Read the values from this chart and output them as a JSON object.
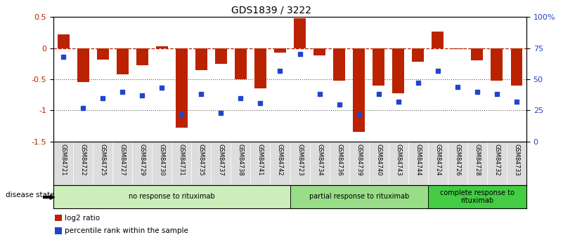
{
  "title": "GDS1839 / 3222",
  "samples": [
    "GSM84721",
    "GSM84722",
    "GSM84725",
    "GSM84727",
    "GSM84729",
    "GSM84730",
    "GSM84731",
    "GSM84735",
    "GSM84737",
    "GSM84738",
    "GSM84741",
    "GSM84742",
    "GSM84723",
    "GSM84734",
    "GSM84736",
    "GSM84739",
    "GSM84740",
    "GSM84743",
    "GSM84744",
    "GSM84724",
    "GSM84726",
    "GSM84728",
    "GSM84732",
    "GSM84733"
  ],
  "log2_ratio": [
    0.22,
    -0.55,
    -0.18,
    -0.42,
    -0.28,
    0.03,
    -1.28,
    -0.35,
    -0.25,
    -0.5,
    -0.65,
    -0.07,
    0.48,
    -0.12,
    -0.52,
    -1.35,
    -0.6,
    -0.72,
    -0.22,
    0.27,
    -0.02,
    -0.2,
    -0.52,
    -0.6
  ],
  "percentile": [
    68,
    27,
    35,
    40,
    37,
    43,
    22,
    38,
    23,
    35,
    31,
    57,
    70,
    38,
    30,
    22,
    38,
    32,
    47,
    57,
    44,
    40,
    38,
    32
  ],
  "groups": [
    {
      "label": "no response to rituximab",
      "start": 0,
      "end": 12,
      "color": "#cceebb"
    },
    {
      "label": "partial response to rituximab",
      "start": 12,
      "end": 19,
      "color": "#99dd88"
    },
    {
      "label": "complete response to\nrituximab",
      "start": 19,
      "end": 24,
      "color": "#44cc44"
    }
  ],
  "ylim_left": [
    -1.5,
    0.5
  ],
  "ylim_right": [
    0,
    100
  ],
  "bar_color": "#bb2200",
  "dot_color": "#2244cc",
  "background_color": "#ffffff",
  "hline_color": "#bb2200",
  "dotted_line_color": "#555555",
  "right_ticks": [
    0,
    25,
    50,
    75,
    100
  ],
  "right_tick_labels": [
    "0",
    "25",
    "50",
    "75",
    "100%"
  ],
  "left_ticks": [
    -1.5,
    -1.0,
    -0.5,
    0.0,
    0.5
  ],
  "left_tick_labels": [
    "-1.5",
    "-1",
    "-0.5",
    "0",
    "0.5"
  ],
  "disease_state_label": "disease state",
  "legend_items": [
    {
      "color": "#bb2200",
      "label": "log2 ratio"
    },
    {
      "color": "#2244cc",
      "label": "percentile rank within the sample"
    }
  ]
}
